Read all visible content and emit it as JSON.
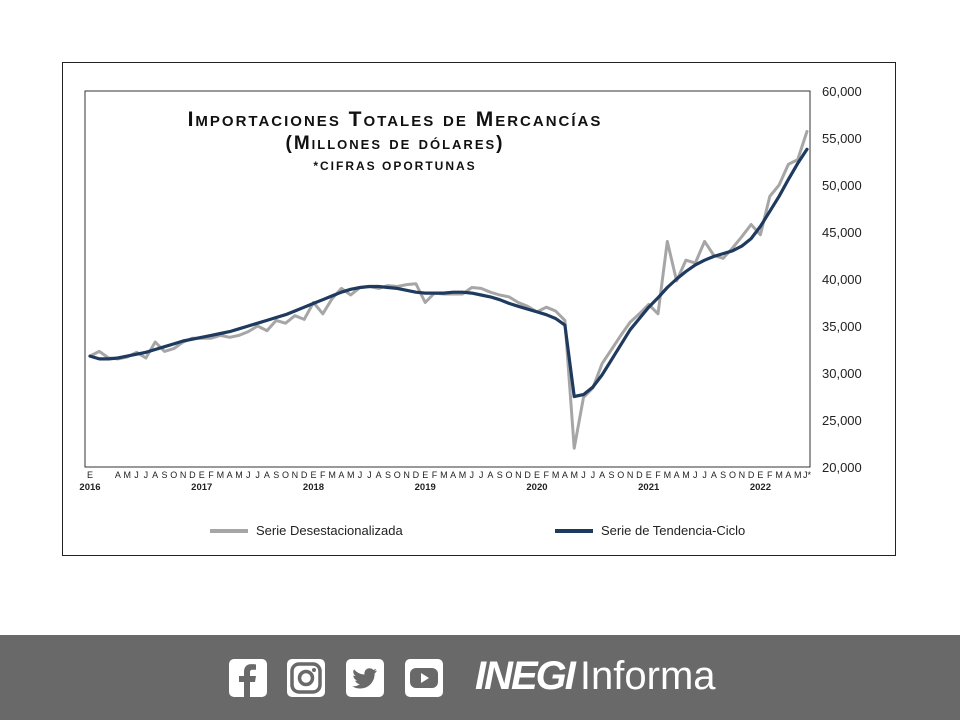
{
  "chart_data": {
    "type": "line",
    "title": "Importaciones Totales de Mercancías",
    "subtitle": "(Millones de dólares)",
    "note": "*cifras oportunas",
    "ylim": [
      20000,
      60000
    ],
    "y_ticks": [
      "60,000",
      "55,000",
      "50,000",
      "45,000",
      "40,000",
      "35,000",
      "30,000",
      "25,000",
      "20,000"
    ],
    "y_tick_values": [
      60000,
      55000,
      50000,
      45000,
      40000,
      35000,
      30000,
      25000,
      20000
    ],
    "month_labels": [
      "E",
      "A",
      "M",
      "J",
      "J",
      "A",
      "S",
      "O",
      "N",
      "D",
      "E",
      "F",
      "M",
      "A",
      "M",
      "J",
      "J",
      "A",
      "S",
      "O",
      "N",
      "D",
      "E",
      "F",
      "M",
      "A",
      "M",
      "J",
      "J",
      "A",
      "S",
      "O",
      "N",
      "D",
      "E",
      "F",
      "M",
      "A",
      "M",
      "J",
      "J",
      "A",
      "S",
      "O",
      "N",
      "D",
      "E",
      "F",
      "M",
      "A",
      "M",
      "J",
      "J",
      "A",
      "S",
      "O",
      "N",
      "D",
      "E",
      "F",
      "M",
      "A",
      "M",
      "J",
      "J",
      "A",
      "S",
      "O",
      "N",
      "D",
      "E",
      "F",
      "M",
      "A",
      "M",
      "J*"
    ],
    "month_label_index": [
      0,
      3,
      4,
      5,
      6,
      7,
      8,
      9,
      10,
      11,
      12,
      13,
      14,
      15,
      16,
      17,
      18,
      19,
      20,
      21,
      22,
      23,
      24,
      25,
      26,
      27,
      28,
      29,
      30,
      31,
      32,
      33,
      34,
      35,
      36,
      37,
      38,
      39,
      40,
      41,
      42,
      43,
      44,
      45,
      46,
      47,
      48,
      49,
      50,
      51,
      52,
      53,
      54,
      55,
      56,
      57,
      58,
      59,
      60,
      61,
      62,
      63,
      64,
      65,
      66,
      67,
      68,
      69,
      70,
      71,
      72,
      73,
      74,
      75,
      76,
      77
    ],
    "years": [
      "2016",
      "2017",
      "2018",
      "2019",
      "2020",
      "2021",
      "2022"
    ],
    "year_index": [
      0,
      12,
      24,
      36,
      48,
      60,
      72
    ],
    "x_start": "2016-01",
    "x_end": "2022-06",
    "legend_placement": "bottom",
    "series": [
      {
        "name": "Serie Desestacionalizada",
        "color": "#a6a6a6",
        "values": [
          31800,
          32300,
          31600,
          31500,
          31700,
          32200,
          31600,
          33300,
          32300,
          32600,
          33300,
          33700,
          33700,
          33700,
          34000,
          33800,
          34000,
          34400,
          35000,
          34500,
          35600,
          35300,
          36100,
          35700,
          37500,
          36300,
          37900,
          39000,
          38300,
          39100,
          39200,
          39000,
          39300,
          39200,
          39400,
          39500,
          37500,
          38500,
          38400,
          38400,
          38400,
          39100,
          39000,
          38600,
          38300,
          38100,
          37500,
          37100,
          36500,
          37000,
          36600,
          35600,
          22000,
          27400,
          28400,
          31000,
          32500,
          34000,
          35400,
          36300,
          37300,
          36300,
          44000,
          39800,
          42000,
          41700,
          44000,
          42500,
          42200,
          43300,
          44500,
          45800,
          44700,
          48800,
          50000,
          52200,
          52700,
          55700
        ]
      },
      {
        "name": "Serie de Tendencia-Ciclo",
        "color": "#1f3a5f",
        "values": [
          31800,
          31500,
          31500,
          31600,
          31800,
          32000,
          32200,
          32500,
          32800,
          33100,
          33400,
          33600,
          33800,
          34000,
          34200,
          34400,
          34700,
          35000,
          35300,
          35600,
          35900,
          36200,
          36600,
          37000,
          37400,
          37800,
          38200,
          38600,
          38900,
          39100,
          39200,
          39200,
          39100,
          39000,
          38800,
          38600,
          38500,
          38500,
          38500,
          38600,
          38600,
          38500,
          38300,
          38100,
          37800,
          37400,
          37100,
          36800,
          36500,
          36200,
          35800,
          35100,
          27500,
          27700,
          28500,
          29800,
          31400,
          33000,
          34600,
          35800,
          37000,
          38000,
          39100,
          40000,
          40800,
          41500,
          42000,
          42400,
          42700,
          43000,
          43500,
          44300,
          45600,
          47200,
          48800,
          50600,
          52300,
          53800
        ]
      }
    ]
  },
  "footer": {
    "brand_bold": "INEGI",
    "brand_light": "Informa",
    "icons": [
      "facebook-icon",
      "instagram-icon",
      "twitter-icon",
      "youtube-icon"
    ]
  }
}
